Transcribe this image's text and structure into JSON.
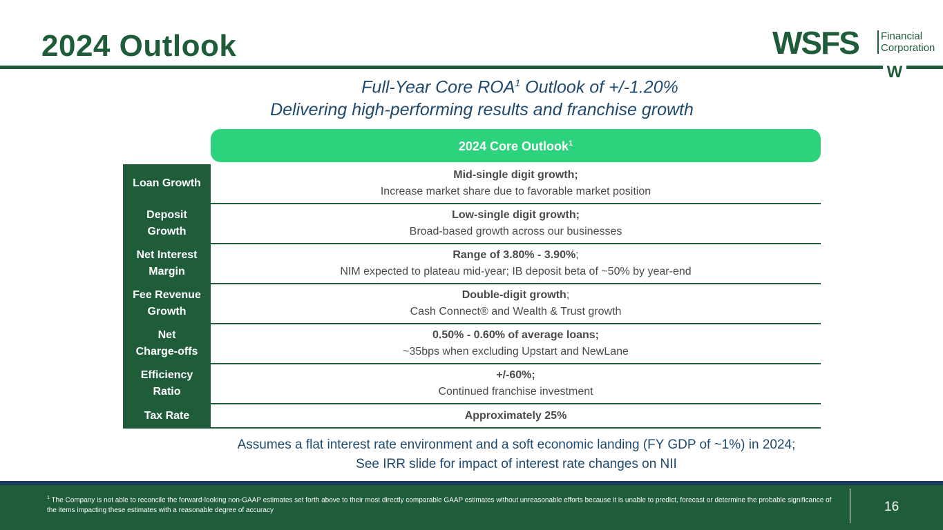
{
  "title": "2024 Outlook",
  "logo": {
    "brand": "WSFS",
    "sub_line1": "Financial",
    "sub_line2": "Corporation",
    "mark": "W"
  },
  "subtitle": {
    "line1_pre": "Full-Year Core ROA",
    "line1_sup": "1",
    "line1_post": " Outlook of +/-1.20%",
    "line2": "Delivering high-performing results and franchise growth"
  },
  "header_pill": {
    "label": "2024 Core Outlook",
    "sup": "1"
  },
  "rows": [
    {
      "label": "Loan Growth",
      "head": "Mid-single digit growth;",
      "tail": "",
      "detail": "Increase market share due to favorable market position"
    },
    {
      "label": "Deposit\nGrowth",
      "head": "Low-single digit growth;",
      "tail": "",
      "detail": "Broad-based growth across our businesses"
    },
    {
      "label": "Net Interest\nMargin",
      "head": "Range of 3.80% - 3.90%",
      "tail": ";",
      "detail": "NIM expected to plateau mid-year; IB deposit beta of ~50% by year-end"
    },
    {
      "label": "Fee Revenue\nGrowth",
      "head": "Double-digit growth",
      "tail": ";",
      "detail": "Cash Connect® and Wealth & Trust growth"
    },
    {
      "label": "Net\nCharge-offs",
      "head": "0.50% - 0.60% of average loans;",
      "tail": "",
      "detail": "~35bps when excluding Upstart and NewLane"
    },
    {
      "label": "Efficiency\nRatio",
      "head": "+/-60%;",
      "tail": "",
      "detail": "Continued franchise investment"
    },
    {
      "label": "Tax Rate",
      "head": "Approximately 25%",
      "tail": "",
      "detail": ""
    }
  ],
  "assumption": {
    "line1": "Assumes a flat interest rate environment and a soft economic landing (FY GDP of ~1%) in 2024;",
    "line2": "See IRR slide for impact of interest rate changes on NII"
  },
  "footnote": {
    "sup": "1",
    "text": " The Company is not able to reconcile the forward-looking non-GAAP estimates set forth above to their most directly comparable GAAP estimates without unreasonable efforts because it is unable to predict, forecast or determine the probable significance of the items impacting these estimates with a reasonable degree of accuracy"
  },
  "page_number": "16",
  "colors": {
    "brand_green": "#1f5c3a",
    "accent_green": "#2cd37c",
    "navy": "#1f4a6e"
  }
}
